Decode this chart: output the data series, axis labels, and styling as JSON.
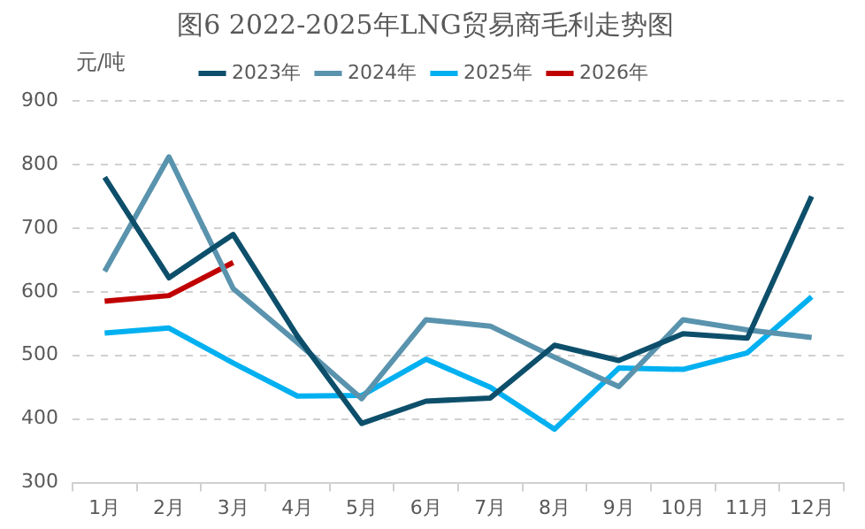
{
  "chart_data": {
    "type": "line",
    "title": "图6 2022-2025年LNG贸易商毛利走势图",
    "ylabel": "元/吨",
    "categories": [
      "1月",
      "2月",
      "3月",
      "4月",
      "5月",
      "6月",
      "7月",
      "8月",
      "9月",
      "10月",
      "11月",
      "12月"
    ],
    "series": [
      {
        "name": "2023年",
        "color": "#0d4f6b",
        "values": [
          780,
          622,
          690,
          530,
          393,
          428,
          433,
          516,
          492,
          534,
          527,
          750
        ]
      },
      {
        "name": "2024年",
        "color": "#5a93ad",
        "values": [
          632,
          812,
          605,
          520,
          432,
          556,
          546,
          497,
          451,
          556,
          540,
          528
        ]
      },
      {
        "name": "2025年",
        "color": "#00b0f0",
        "values": [
          535,
          543,
          488,
          436,
          437,
          494,
          450,
          384,
          480,
          478,
          504,
          592
        ]
      },
      {
        "name": "2026年",
        "color": "#c00000",
        "values": [
          585,
          594,
          646,
          null,
          null,
          null,
          null,
          null,
          null,
          null,
          null,
          null
        ]
      }
    ],
    "ylim": [
      300,
      900
    ],
    "yticks": [
      300,
      400,
      500,
      600,
      700,
      800,
      900
    ],
    "grid": "y",
    "legend": "top",
    "marker": "none",
    "line_style": "solid"
  }
}
